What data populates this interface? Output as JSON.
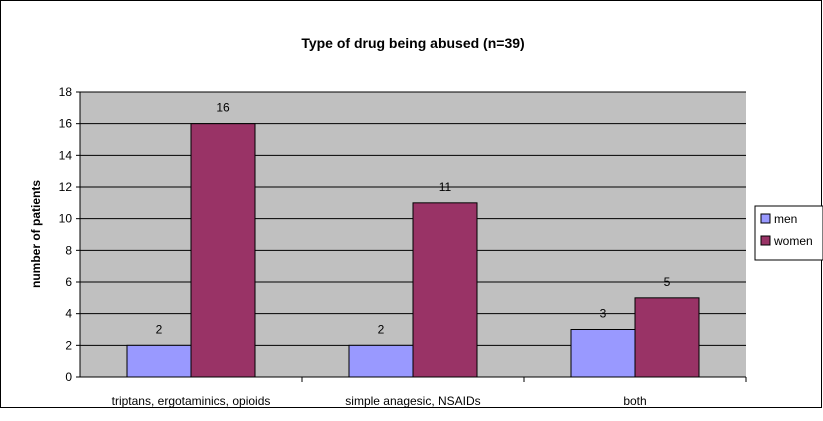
{
  "chart_data": {
    "type": "bar",
    "title": "Type of drug being abused (n=39)",
    "xlabel": "",
    "ylabel": "number of patients",
    "ylim": [
      0,
      18
    ],
    "ytick_step": 2,
    "grid": true,
    "legend_position": "right",
    "categories": [
      "triptans, ergotaminics, opioids",
      "simple anagesic, NSAIDs",
      "both"
    ],
    "series": [
      {
        "name": "men",
        "values": [
          2,
          2,
          3
        ],
        "color": "#9999ff"
      },
      {
        "name": "women",
        "values": [
          16,
          11,
          5
        ],
        "color": "#993366"
      }
    ],
    "plot_background": "#c0c0c0"
  }
}
